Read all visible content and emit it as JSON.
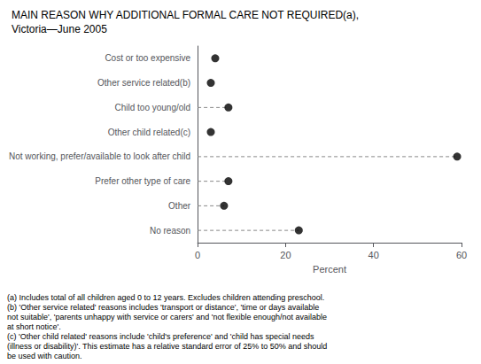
{
  "chart_data": {
    "type": "scatter",
    "orientation": "horizontal",
    "title": "MAIN REASON WHY ADDITIONAL FORMAL CARE NOT REQUIRED(a),",
    "subtitle": "Victoria—June 2005",
    "categories": [
      "Cost or too expensive",
      "Other service related(b)",
      "Child too young/old",
      "Other child related(c)",
      "Not working, prefer/available to look after child",
      "Prefer other type of care",
      "Other",
      "No reason"
    ],
    "series": [
      {
        "type": "bar",
        "line_style": "dashed",
        "color": "#888888",
        "values": [
          null,
          null,
          7,
          null,
          59,
          7,
          6,
          23
        ]
      },
      {
        "type": "scatter",
        "marker": "circle",
        "color": "black",
        "values": [
          4,
          3,
          7,
          3,
          59,
          7,
          6,
          23
        ]
      }
    ],
    "xlabel": "Percent",
    "xlim": [
      0,
      60
    ],
    "xticks": [
      0,
      20,
      40,
      60
    ],
    "grid": false,
    "annotations": [
      "(a) Includes total of all children aged 0 to 12 years. Excludes children attending preschool.",
      "(b) 'Other service related' reasons includes 'transport or distance', 'time or days available",
      "not suitable', 'parents unhappy with service or carers' and 'not flexible enough/not available",
      "at short notice'.",
      "(c) 'Other child related' reasons include 'child's preference' and 'child has special needs",
      "(illness or disability)'. This estimate has a relative standard error of 25% to 50% and should",
      "be used with caution."
    ]
  }
}
